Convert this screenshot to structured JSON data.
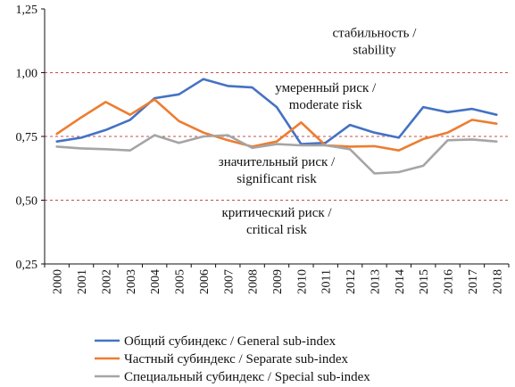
{
  "chart_data": {
    "type": "line",
    "title": "",
    "xlabel": "",
    "ylabel": "",
    "x": [
      "2000",
      "2001",
      "2002",
      "2003",
      "2004",
      "2005",
      "2006",
      "2007",
      "2008",
      "2009",
      "2010",
      "2011",
      "2012",
      "2013",
      "2014",
      "2015",
      "2016",
      "2017",
      "2018"
    ],
    "ylim": [
      0.25,
      1.25
    ],
    "y_ticks": [
      "0,25",
      "0,50",
      "0,75",
      "1,00",
      "1,25"
    ],
    "y_tick_values": [
      0.25,
      0.5,
      0.75,
      1.0,
      1.25
    ],
    "threshold_lines": [
      0.5,
      0.75,
      1.0
    ],
    "threshold_color": "#c0504d",
    "grid": false,
    "legend_position": "bottom",
    "series": [
      {
        "name": "Общий субиндекс / General sub-index",
        "color": "#4472c4",
        "values": [
          0.73,
          0.745,
          0.775,
          0.815,
          0.9,
          0.915,
          0.975,
          0.948,
          0.942,
          0.865,
          0.72,
          0.725,
          0.795,
          0.765,
          0.745,
          0.865,
          0.845,
          0.858,
          0.835
        ]
      },
      {
        "name": "Частный субиндекс / Separate sub-index",
        "color": "#ed7d31",
        "values": [
          0.76,
          0.825,
          0.885,
          0.835,
          0.895,
          0.81,
          0.765,
          0.735,
          0.71,
          0.73,
          0.805,
          0.715,
          0.71,
          0.712,
          0.695,
          0.74,
          0.765,
          0.815,
          0.8
        ]
      },
      {
        "name": "Специальный субиндекс / Special sub-index",
        "color": "#a5a5a5",
        "values": [
          0.71,
          0.703,
          0.7,
          0.695,
          0.755,
          0.725,
          0.75,
          0.755,
          0.705,
          0.72,
          0.715,
          0.715,
          0.7,
          0.605,
          0.61,
          0.635,
          0.735,
          0.738,
          0.73
        ]
      }
    ],
    "annotations": [
      {
        "lines": [
          "стабильность /",
          "stability"
        ],
        "x": "2013",
        "y": 1.14
      },
      {
        "lines": [
          "умеренный риск /",
          "moderate risk"
        ],
        "x": "2011",
        "y": 0.925
      },
      {
        "lines": [
          "значительный риск /",
          "significant risk"
        ],
        "x": "2009",
        "y": 0.635
      },
      {
        "lines": [
          "критический риск /",
          "critical risk"
        ],
        "x": "2009",
        "y": 0.435
      }
    ]
  }
}
